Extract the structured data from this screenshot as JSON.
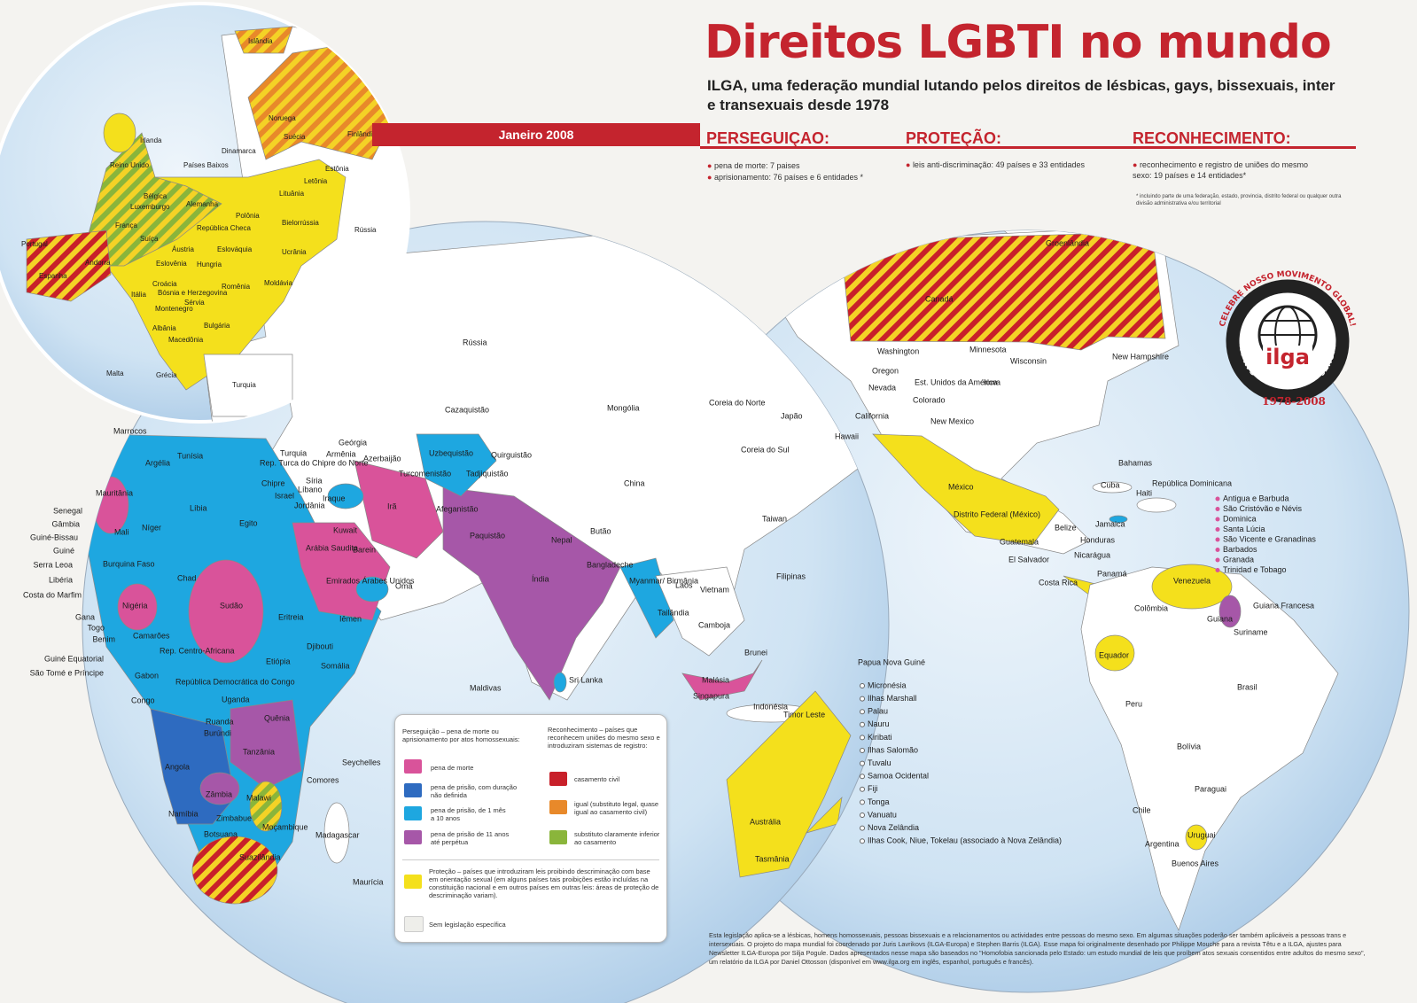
{
  "header": {
    "title": "Direitos LGBTI no mundo",
    "subtitle": "ILGA, uma federação mundial lutando pelos direitos de lésbicas, gays, bissexuais, inter e transexuais desde 1978",
    "date": "Janeiro 2008"
  },
  "sections": [
    {
      "heading": "PERSEGUIÇAO:",
      "items": [
        "pena de morte: 7 paises",
        "aprisionamento: 76 países e 6 entidades *"
      ]
    },
    {
      "heading": "PROTEÇÃO:",
      "items": [
        "leis anti-discriminação: 49 países e 33 entidades"
      ]
    },
    {
      "heading": "RECONHECIMENTO:",
      "items": [
        "reconhecimento e registro de uniões do mesmo sexo: 19 países e 14 entidades*"
      ]
    }
  ],
  "footnote": "* incluindo parte de uma federação, estado, provincia, distrito federal ou qualquer outra divisão administrativa e/ou territorial",
  "logo": {
    "ring_top": "CELEBRE NOSSO MOVIMENTO GLOBAL!",
    "ring_inner": "GAY AND LESBIAN RIGHTS ARE HUMAN RIGHTS",
    "name": "ilga",
    "years": "1978-2008"
  },
  "legend": {
    "persecution": {
      "title": "Perseguição – pena de morte ou aprisionamento por atos homossexuais:",
      "items": [
        "pena de morte",
        "pena de prisão, com duração não definida",
        "pena de prisão, de 1 mês a 10 anos",
        "pena de prisão de 11 anos até perpétua"
      ]
    },
    "recognition": {
      "title": "Reconhecimento – países que reconhecem uniões do mesmo sexo e introduziram sistemas de registro:",
      "items": [
        "casamento civil",
        "igual (substituto legal, quase igual ao casamento civil)",
        "substituto claramente inferior ao casamento"
      ]
    },
    "protection": "Proteção – países que introduziram leis proibindo descriminação com base em orientação sexual (em alguns países tais proibições estão incluídas na constituição nacional e em outros países em outras leis: áreas de proteção de descriminação variam).",
    "none": "Sem legislação específica"
  },
  "inset_labels": [
    "Islândia",
    "Noruega",
    "Suécia",
    "Finlândia",
    "Irlanda",
    "Dinamarca",
    "Reino Unido",
    "Países Baixos",
    "Estônia",
    "Letônia",
    "Bélgica",
    "Lituânia",
    "Luxemburgo",
    "Alemanha",
    "Polônia",
    "Bielorrússia",
    "Rússia",
    "França",
    "República Checa",
    "Suíça",
    "Áustria",
    "Eslováquia",
    "Ucrânia",
    "Portugal",
    "Andorra",
    "Espanha",
    "Eslovênia",
    "Hungria",
    "Moldávia",
    "Croácia",
    "Bósnia e Herzegovina",
    "Romênia",
    "Itália",
    "Sérvia",
    "Montenegro",
    "Albânia",
    "Bulgária",
    "Macedônia",
    "Malta",
    "Grécia",
    "Turquia"
  ],
  "left_labels": [
    "Rússia",
    "Cazaquistão",
    "Mongólia",
    "China",
    "Marrocos",
    "Tunísia",
    "Argélia",
    "Turquia",
    "Rep. Turca do Chipre do Norte",
    "Geórgia",
    "Armênia",
    "Azerbaijão",
    "Uzbequistão",
    "Quirguistão",
    "Turcomenistão",
    "Tadjiquistão",
    "Chipre",
    "Síria",
    "Líbano",
    "Israel",
    "Iraque",
    "Jordânia",
    "Irã",
    "Afeganistão",
    "Mauritânia",
    "Líbia",
    "Egito",
    "Kuwait",
    "Mali",
    "Níger",
    "Paquistão",
    "Arábia Saudita",
    "Barein",
    "Nepal",
    "Butão",
    "Burquina Faso",
    "Emirados Árabes Unidos",
    "Bangladeche",
    "Chad",
    "Omã",
    "Índia",
    "Myanmar/ Birmânia",
    "Laos",
    "Vietnam",
    "Nigéria",
    "Sudão",
    "Eritreia",
    "Iêmen",
    "Tailândia",
    "Camboja",
    "Camarões",
    "Rep. Centro-Africana",
    "Djibouti",
    "Etiópia",
    "Somália",
    "Gabon",
    "República Democrática do Congo",
    "Uganda",
    "Quênia",
    "Congo",
    "Ruanda",
    "Burúndi",
    "Tanzânia",
    "Angola",
    "Zâmbia",
    "Malawi",
    "Namíbia",
    "Zimbabue",
    "Moçambique",
    "Botsuana",
    "Madagascar",
    "Suazilândia",
    "Sri Lanka",
    "Maldivas",
    "Malásia",
    "Singapura",
    "Brunei",
    "Indonésia",
    "Timor Leste",
    "Seychelles",
    "Comores",
    "Maurícia",
    "Japão",
    "Coreia do Norte",
    "Coreia do Sul",
    "Taiwan",
    "Filipinas",
    "Papua Nova Guiné",
    "Austrália",
    "Tasmânia",
    "Senegal",
    "Gâmbia",
    "Guiné-Bissau",
    "Guiné",
    "Serra Leoa",
    "Libéria",
    "Costa do Marfim",
    "Gana",
    "Togo",
    "Benim",
    "Guiné Equatorial",
    "São Tomé e Príncipe"
  ],
  "right_labels": [
    "Canadá",
    "Groenlândia",
    "Washington",
    "Minnesota",
    "Wisconsin",
    "Oregon",
    "Est. Unidos da América",
    "New Hampshire",
    "Nevada",
    "Iowa",
    "Colorado",
    "California",
    "New Mexico",
    "Hawaii",
    "México",
    "Distrito Federal (México)",
    "Bahamas",
    "Cuba",
    "Haiti",
    "República Dominicana",
    "Belize",
    "Jamaica",
    "Honduras",
    "Guatemala",
    "Nicarágua",
    "El Salvador",
    "Panamá",
    "Costa Rica",
    "Venezuela",
    "Colômbia",
    "Guiana",
    "Guiana Francesa",
    "Suriname",
    "Equador",
    "Brasil",
    "Peru",
    "Bolívia",
    "Paraguai",
    "Chile",
    "Argentina",
    "Uruguai",
    "Buenos Aires"
  ],
  "caribbean_list": [
    "Antigua e Barbuda",
    "São Cristóvão e Névis",
    "Dominica",
    "Santa Lúcia",
    "São Vicente e Granadinas",
    "Barbados",
    "Granada",
    "Trinidad e Tobago"
  ],
  "pacific_list": [
    "Micronésia",
    "Ilhas Marshall",
    "Palau",
    "Nauru",
    "Kiribati",
    "Ilhas Salomão",
    "Tuvalu",
    "Samoa Ocidental",
    "Fiji",
    "Tonga",
    "Vanuatu",
    "Nova Zelândia",
    "Ilhas Cook, Niue, Tokelau (associado à Nova Zelândia)"
  ],
  "note": "Esta legislação aplica-se a lésbicas, homens homossexuais, pessoas bissexuais e a relacionamentos ou actividades entre pessoas do mesmo sexo. Em algumas situações poderão ser também aplicáveis a pessoas trans e intersexuais. O projeto do mapa mundial foi coordenado por Juris Lavrikovs (ILGA-Europa) e Stephen Barris (ILGA). Esse mapa foi originalmente desenhado por Philippe Mouche para a revista Têtu e a ILGA, ajustes para Newsletter ILGA-Europa por Silja Pogule. Dados apresentados nesse mapa são baseados no \"Homofobia sancionada pelo Estado: um estudo mundial de leis que proíbem atos sexuais consentidos entre adultos do mesmo sexo\", um relatório da ILGA por Daniel Ottosson (disponível em www.ilga.org em inglês, espanhol, português e francês)."
}
